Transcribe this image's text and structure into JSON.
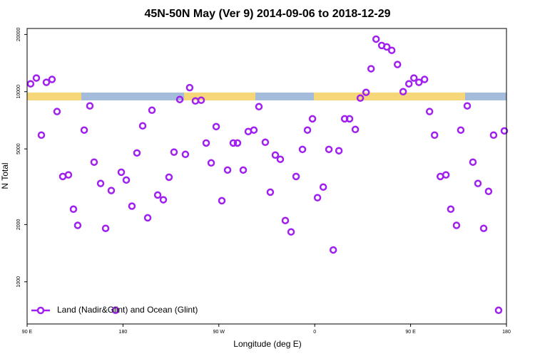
{
  "chart_data": {
    "type": "scatter",
    "title": "45N-50N May (Ver 9)   2014-09-06 to 2018-12-29",
    "x_label": "Longitude (deg E)",
    "y_label": "N Total",
    "y_scale": "log",
    "xlim": [
      90,
      540
    ],
    "ylim": [
      600,
      21500
    ],
    "xticks": [
      {
        "value": 90,
        "label": "90 E"
      },
      {
        "value": 180,
        "label": "180"
      },
      {
        "value": 270,
        "label": "90 W"
      },
      {
        "value": 360,
        "label": "0"
      },
      {
        "value": 450,
        "label": "90 E"
      },
      {
        "value": 540,
        "label": "180"
      }
    ],
    "yticks": [
      1000,
      2000,
      5000,
      10000,
      20000
    ],
    "legend_position": "bottom-left",
    "series": [
      {
        "name": "Land (Nadir&Glint) and Ocean (Glint)",
        "color": "#a020f0",
        "x": [
          93.3,
          98.7,
          103.4,
          108.1,
          113.4,
          118.1,
          123.5,
          128.8,
          133.5,
          137.5,
          143.6,
          148.9,
          152.9,
          159.0,
          163.7,
          169.0,
          173.0,
          178.4,
          183.1,
          188.4,
          193.1,
          198.5,
          203.2,
          207.2,
          212.6,
          217.9,
          223.2,
          227.9,
          233.3,
          238.6,
          242.6,
          248.0,
          253.4,
          258.1,
          262.8,
          267.5,
          272.8,
          278.2,
          283.5,
          287.5,
          292.9,
          297.6,
          302.9,
          307.6,
          313.6,
          318.3,
          323.0,
          327.7,
          332.4,
          337.8,
          342.5,
          348.5,
          353.2,
          357.9,
          362.6,
          368.0,
          373.3,
          377.4,
          382.7,
          388.1,
          392.7,
          398.1,
          402.8,
          408.2,
          412.9,
          417.6,
          422.9,
          427.6,
          432.3,
          437.7,
          443.0,
          448.4,
          453.1,
          457.8,
          463.1,
          467.8,
          472.5,
          477.9,
          483.2,
          487.7,
          493.1,
          497.1,
          503.2,
          508.5,
          513.2,
          518.6,
          523.2,
          527.9,
          532.6,
          538.0
        ],
        "values": [
          11000,
          11800,
          5910,
          11200,
          11600,
          7860,
          3580,
          3650,
          2410,
          1980,
          6280,
          8420,
          4260,
          3290,
          1910,
          3020,
          708,
          3770,
          3430,
          2500,
          4760,
          6610,
          2170,
          7990,
          2860,
          2700,
          3550,
          4810,
          9100,
          4680,
          10500,
          8940,
          9020,
          5370,
          4220,
          6550,
          2670,
          3870,
          5370,
          5370,
          3870,
          6170,
          6280,
          8340,
          5420,
          2960,
          4640,
          4410,
          2100,
          1830,
          3580,
          4970,
          6280,
          7200,
          2770,
          3150,
          4970,
          1470,
          4890,
          7200,
          7200,
          6330,
          9250,
          9920,
          13200,
          18900,
          17500,
          17200,
          16500,
          13900,
          10000,
          11000,
          11800,
          11200,
          11600,
          7860,
          5910,
          3580,
          3650,
          2410,
          1980,
          6280,
          8420,
          4260,
          3290,
          1910,
          2990,
          5910,
          708,
          6220
        ]
      }
    ]
  }
}
